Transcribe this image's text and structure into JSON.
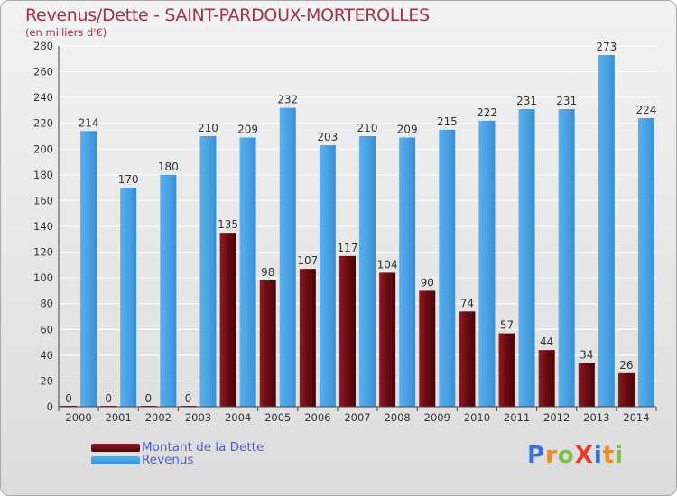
{
  "title": "Revenus/Dette - SAINT-PARDOUX-MORTEROLLES",
  "subtitle": "(en milliers d'€)",
  "legend": [
    {
      "label": "Montant de la Dette",
      "color": "#6b0c12"
    },
    {
      "label": "Revenus",
      "color": "#4aa1e3"
    }
  ],
  "logo": {
    "text": "ProXiti",
    "colors": [
      "#3a6fd8",
      "#f08a24",
      "#7cc242",
      "#e23a2e",
      "#3a6fd8",
      "#f08a24",
      "#7cc242"
    ]
  },
  "chart_data": {
    "type": "bar",
    "categories": [
      "2000",
      "2001",
      "2002",
      "2003",
      "2004",
      "2005",
      "2006",
      "2007",
      "2008",
      "2009",
      "2010",
      "2011",
      "2012",
      "2013",
      "2014"
    ],
    "series": [
      {
        "name": "Montant de la Dette",
        "color": "#6b0c12",
        "values": [
          0,
          0,
          0,
          0,
          135,
          98,
          107,
          117,
          104,
          90,
          74,
          57,
          44,
          34,
          26
        ]
      },
      {
        "name": "Revenus",
        "color": "#4aa1e3",
        "values": [
          214,
          170,
          180,
          210,
          209,
          232,
          203,
          210,
          209,
          215,
          222,
          231,
          231,
          273,
          224
        ]
      }
    ],
    "ylim": [
      0,
      280
    ],
    "yticks": [
      0,
      20,
      40,
      60,
      80,
      100,
      120,
      140,
      160,
      180,
      200,
      220,
      240,
      260,
      280
    ],
    "grid": true,
    "legend_position": "bottom-left"
  }
}
